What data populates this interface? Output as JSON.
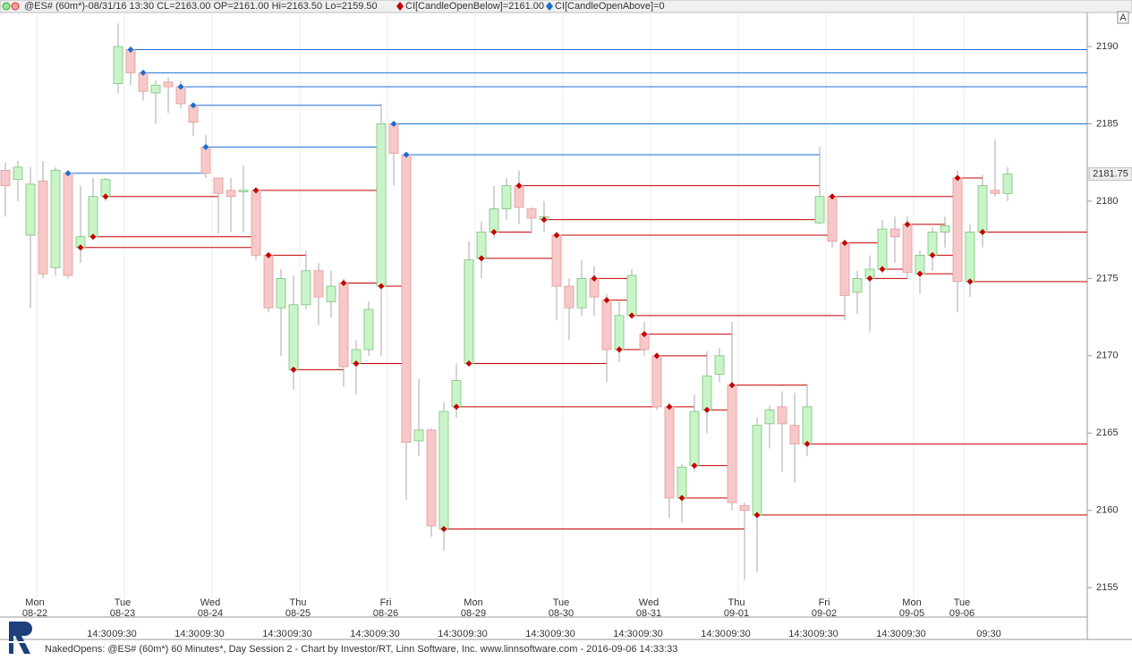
{
  "chart_data": {
    "type": "candlestick",
    "title": "@ES# (60m*)-08/31/16 13:30 CL=2163.00 OP=2161.00 Hi=2163.50 Lo=2159.50",
    "legend_below": "CI[CandleOpenBelow]=2161.00",
    "legend_above": "CI[CandleOpenAbove]=0",
    "footer": "NakedOpens: @ES# (60m*) 60 Minutes*, Day Session 2 - Chart by Investor/RT, Linn Software, Inc. www.linnsoftware.com - 2016-09-06 14:33:33",
    "axis_corner": "A",
    "up_color": "#c8f5c8",
    "down_color": "#f8c8c8",
    "above_color": "#1a6fd6",
    "below_color": "#c40000",
    "open": [
      2182,
      2181.4,
      2177.8,
      2181.3,
      2175.7,
      2181.8,
      2177.0,
      2177.7,
      2180.3,
      2187.6,
      2189.8,
      2188.3,
      2187,
      2187.7,
      2187.4,
      2186.2,
      2183.5,
      2181.5,
      2180.7,
      2180.6,
      2180.7,
      2176.5,
      2173.1,
      2169.1,
      2173.3,
      2175.5,
      2173.5,
      2174.7,
      2169.5,
      2170.4,
      2174.5,
      2185,
      2183,
      2164.5,
      2165.2,
      2158.8,
      2166.7,
      2169.5,
      2176.3,
      2178,
      2179.5,
      2181,
      2179.5,
      2178.8,
      2177.8,
      2174.5,
      2173.1,
      2175.0,
      2173.6,
      2170.4,
      2172.6,
      2171.4,
      2170,
      2166.7,
      2160.8,
      2162.9,
      2166.5,
      2168.8,
      2168.1,
      2160.3,
      2159.7,
      2165.6,
      2166.7,
      2165.5,
      2164.3,
      2178.6,
      2180.3,
      2177.3,
      2174.1,
      2175,
      2175.6,
      2178.2,
      2178.5,
      2175.3,
      2176.5,
      2178,
      2181.5,
      2174.8,
      2178.0,
      2180.7,
      2180.5
    ],
    "high": [
      2182.5,
      2182.6,
      2182.2,
      2182.6,
      2182.2,
      2182,
      2181,
      2181.5,
      2181.5,
      2191.5,
      2190,
      2188.5,
      2187.8,
      2188,
      2187.8,
      2186.3,
      2184.3,
      2181.5,
      2181.5,
      2182.3,
      2180.8,
      2176.6,
      2175.6,
      2175.2,
      2176.8,
      2176,
      2175.5,
      2175,
      2171,
      2173.5,
      2186.3,
      2185.2,
      2183.1,
      2168.5,
      2165.3,
      2167,
      2169.5,
      2177.4,
      2178.7,
      2181,
      2181.5,
      2182,
      2179.6,
      2180,
      2178,
      2175,
      2176.2,
      2175.8,
      2174,
      2173.5,
      2175.6,
      2172.2,
      2170.2,
      2167,
      2163,
      2167.5,
      2170.3,
      2170.5,
      2172.2,
      2160.5,
      2166,
      2166.8,
      2167.7,
      2167.6,
      2168.2,
      2183.5,
      2180.5,
      2177.5,
      2175.5,
      2176.5,
      2178.8,
      2179,
      2179,
      2176.8,
      2178.3,
      2179,
      2182,
      2178.5,
      2181.7,
      2184,
      2182.2
    ],
    "low": [
      2179,
      2180,
      2173.1,
      2175.0,
      2175.2,
      2175,
      2176,
      2177.5,
      2180,
      2187,
      2187.5,
      2186.5,
      2185,
      2185.7,
      2186,
      2184.2,
      2181.5,
      2177.9,
      2178,
      2178,
      2176.2,
      2172.8,
      2170,
      2167.8,
      2173,
      2172,
      2172.5,
      2168,
      2167.5,
      2170,
      2170,
      2181,
      2160.7,
      2163.5,
      2158.3,
      2157.4,
      2166,
      2169.3,
      2175,
      2177.6,
      2178.8,
      2178.5,
      2178,
      2178,
      2172.3,
      2171,
      2172.6,
      2172.6,
      2168.3,
      2169.6,
      2172.4,
      2170,
      2166.5,
      2159.5,
      2159.2,
      2162.5,
      2165,
      2168.3,
      2160,
      2155.5,
      2156,
      2164,
      2162.5,
      2161.8,
      2163.5,
      2178.5,
      2177,
      2172.3,
      2172.7,
      2171.5,
      2175.3,
      2176,
      2175,
      2174,
      2175.5,
      2177,
      2172.8,
      2173.8,
      2177,
      2180.3,
      2180
    ],
    "close": [
      2181,
      2182.2,
      2181.1,
      2175.3,
      2182.0,
      2175.2,
      2177.7,
      2180.3,
      2181.4,
      2190,
      2188.3,
      2187.1,
      2187.5,
      2187.4,
      2186.3,
      2185.1,
      2181.8,
      2180.5,
      2180.3,
      2180.7,
      2176.5,
      2173.1,
      2175.0,
      2173.3,
      2175.5,
      2173.8,
      2174.5,
      2169.3,
      2170.4,
      2173,
      2185.0,
      2183.1,
      2164.4,
      2165.2,
      2159,
      2166.4,
      2168.4,
      2176.2,
      2178,
      2179.5,
      2181,
      2179.6,
      2178.9,
      2179,
      2174.5,
      2173.1,
      2175.0,
      2173.8,
      2170.4,
      2172.6,
      2175.2,
      2170.4,
      2166.7,
      2160.8,
      2162.8,
      2166.4,
      2168.7,
      2170,
      2160.5,
      2160,
      2165.5,
      2166.5,
      2165.6,
      2164.3,
      2166.7,
      2180.3,
      2177.4,
      2173.9,
      2175.0,
      2175.6,
      2178.2,
      2177.7,
      2175.4,
      2176.5,
      2178,
      2178.4,
      2174.8,
      2178.0,
      2181.0,
      2180.5,
      2181.75
    ],
    "ylim": [
      2153.1,
      2192.2
    ],
    "yticks": [
      2155,
      2160,
      2165,
      2170,
      2175,
      2180,
      2185,
      2190
    ],
    "day_labels": [
      {
        "day": "Mon",
        "date": "08-22",
        "bar": 2
      },
      {
        "day": "Tue",
        "date": "08-23",
        "bar": 9
      },
      {
        "day": "Wed",
        "date": "08-24",
        "bar": 16
      },
      {
        "day": "Thu",
        "date": "08-25",
        "bar": 23
      },
      {
        "day": "Fri",
        "date": "08-26",
        "bar": 30
      },
      {
        "day": "Mon",
        "date": "08-29",
        "bar": 37
      },
      {
        "day": "Tue",
        "date": "08-30",
        "bar": 44
      },
      {
        "day": "Wed",
        "date": "08-31",
        "bar": 51
      },
      {
        "day": "Thu",
        "date": "09-01",
        "bar": 58
      },
      {
        "day": "Fri",
        "date": "09-02",
        "bar": 65
      },
      {
        "day": "Mon",
        "date": "09-05",
        "bar": 72
      },
      {
        "day": "Tue",
        "date": "09-06",
        "bar": 76
      }
    ],
    "time_labels": [
      {
        "label": "14:30",
        "bar": 7
      },
      {
        "label": "09:30",
        "bar": 9
      },
      {
        "label": "14:30",
        "bar": 14
      },
      {
        "label": "09:30",
        "bar": 16
      },
      {
        "label": "14:30",
        "bar": 21
      },
      {
        "label": "09:30",
        "bar": 23
      },
      {
        "label": "14:30",
        "bar": 28
      },
      {
        "label": "09:30",
        "bar": 30
      },
      {
        "label": "14:30",
        "bar": 35
      },
      {
        "label": "09:30",
        "bar": 37
      },
      {
        "label": "14:30",
        "bar": 42
      },
      {
        "label": "09:30",
        "bar": 44
      },
      {
        "label": "14:30",
        "bar": 49
      },
      {
        "label": "09:30",
        "bar": 51
      },
      {
        "label": "14:30",
        "bar": 56
      },
      {
        "label": "09:30",
        "bar": 58
      },
      {
        "label": "14:30",
        "bar": 63
      },
      {
        "label": "09:30",
        "bar": 65
      },
      {
        "label": "14:30",
        "bar": 70
      },
      {
        "label": "09:30",
        "bar": 72
      },
      {
        "label": "09:30",
        "bar": 78
      }
    ]
  }
}
